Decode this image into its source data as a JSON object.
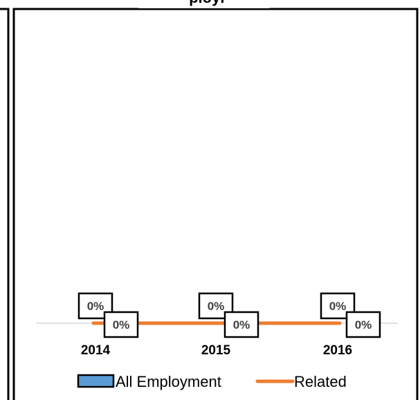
{
  "chart_data": {
    "type": "bar",
    "title": "",
    "xlabel": "",
    "ylabel": "",
    "categories": [
      "2014",
      "2015",
      "2016"
    ],
    "series": [
      {
        "name": "All Employment",
        "kind": "bar",
        "color": "#5b9bd5",
        "values": [
          0,
          0,
          0
        ],
        "labels": [
          "0%",
          "0%",
          "0%"
        ]
      },
      {
        "name": "Related",
        "kind": "line",
        "color": "#ed7d31",
        "values": [
          0,
          0,
          0
        ],
        "labels": [
          "0%",
          "0%",
          "0%"
        ]
      }
    ],
    "ylim": [
      0,
      1
    ],
    "grid": false,
    "legend_position": "bottom",
    "title_fragment": "ployr"
  }
}
